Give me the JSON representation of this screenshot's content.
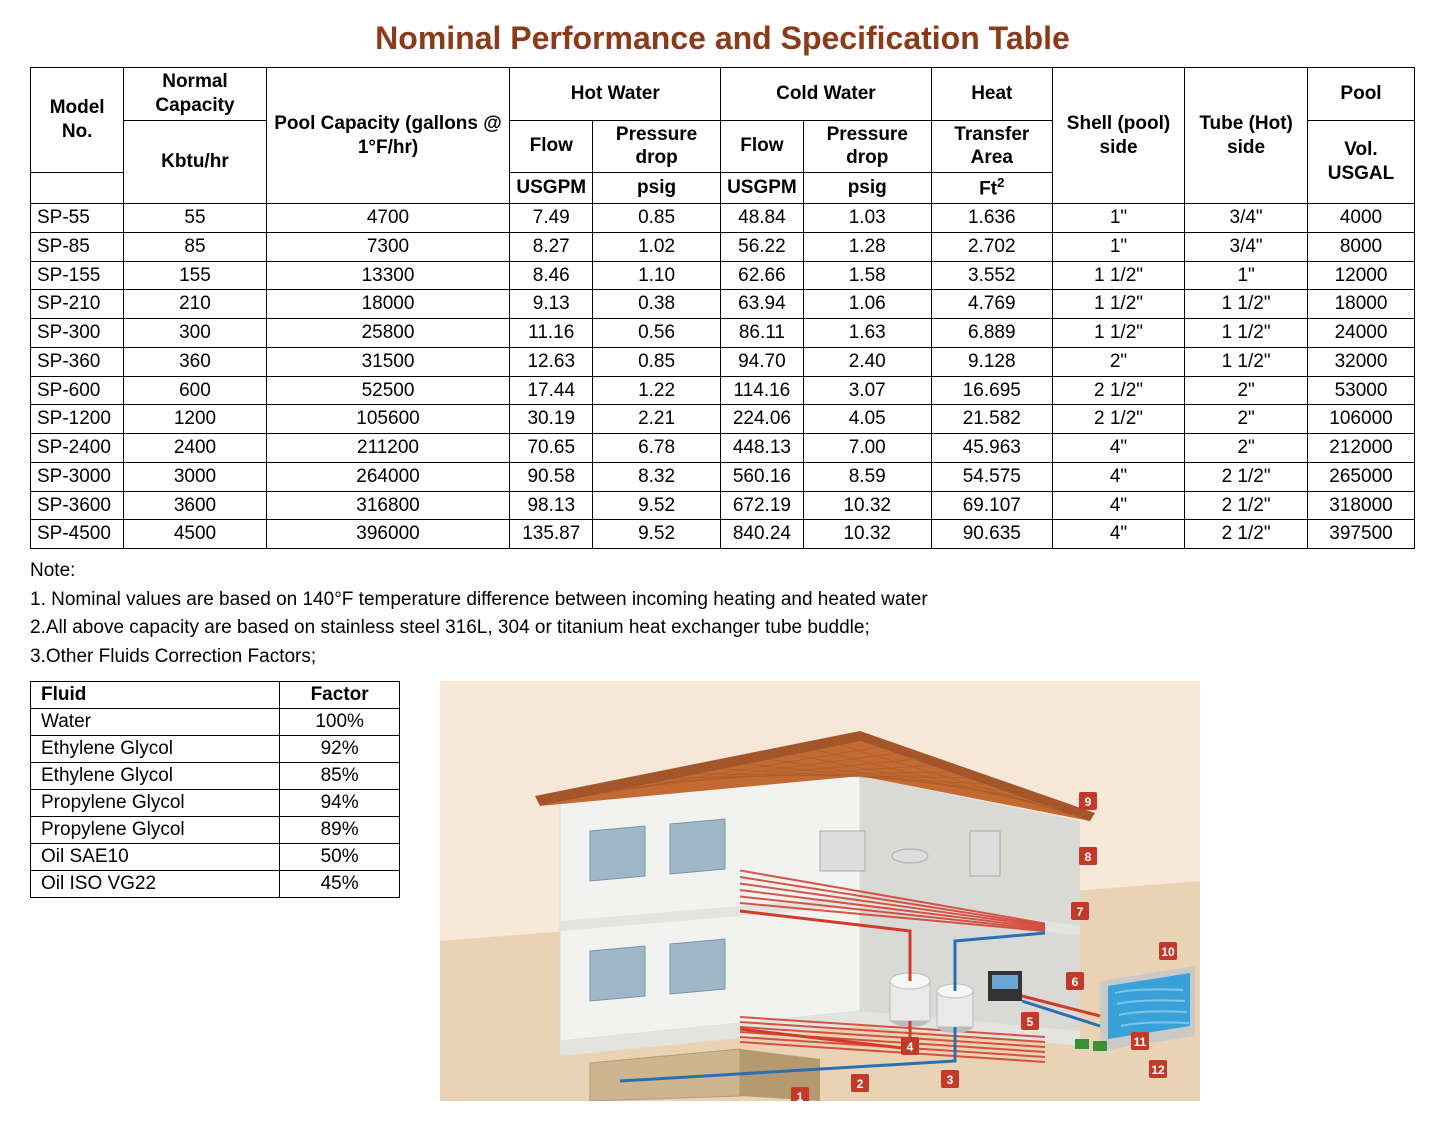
{
  "title": "Nominal Performance and Specification Table",
  "spec_table": {
    "header": {
      "model_no": "Model No.",
      "normal_capacity": "Normal Capacity",
      "normal_capacity_unit": "Kbtu/hr",
      "pool_capacity": "Pool Capacity (gallons @ 1°F/hr)",
      "hot_water": "Hot Water",
      "cold_water": "Cold Water",
      "flow": "Flow",
      "flow_unit": "USGPM",
      "pressure_drop": "Pressure drop",
      "pressure_drop_unit": "psig",
      "heat": "Heat",
      "heat_transfer_area": "Transfer Area",
      "heat_unit": "Ft",
      "heat_unit_sup": "2",
      "shell": "Shell (pool) side",
      "tube": "Tube (Hot) side",
      "pool": "Pool",
      "pool_vol": "Vol. USGAL"
    },
    "rows": [
      {
        "model": "SP-55",
        "cap": "55",
        "pool_cap": "4700",
        "hw_flow": "7.49",
        "hw_pd": "0.85",
        "cw_flow": "48.84",
        "cw_pd": "1.03",
        "hta": "1.636",
        "shell": "1\"",
        "tube": "3/4\"",
        "pvol": "4000"
      },
      {
        "model": "SP-85",
        "cap": "85",
        "pool_cap": "7300",
        "hw_flow": "8.27",
        "hw_pd": "1.02",
        "cw_flow": "56.22",
        "cw_pd": "1.28",
        "hta": "2.702",
        "shell": "1\"",
        "tube": "3/4\"",
        "pvol": "8000"
      },
      {
        "model": "SP-155",
        "cap": "155",
        "pool_cap": "13300",
        "hw_flow": "8.46",
        "hw_pd": "1.10",
        "cw_flow": "62.66",
        "cw_pd": "1.58",
        "hta": "3.552",
        "shell": "1 1/2\"",
        "tube": "1\"",
        "pvol": "12000"
      },
      {
        "model": "SP-210",
        "cap": "210",
        "pool_cap": "18000",
        "hw_flow": "9.13",
        "hw_pd": "0.38",
        "cw_flow": "63.94",
        "cw_pd": "1.06",
        "hta": "4.769",
        "shell": "1 1/2\"",
        "tube": "1 1/2\"",
        "pvol": "18000"
      },
      {
        "model": "SP-300",
        "cap": "300",
        "pool_cap": "25800",
        "hw_flow": "11.16",
        "hw_pd": "0.56",
        "cw_flow": "86.11",
        "cw_pd": "1.63",
        "hta": "6.889",
        "shell": "1 1/2\"",
        "tube": "1 1/2\"",
        "pvol": "24000"
      },
      {
        "model": "SP-360",
        "cap": "360",
        "pool_cap": "31500",
        "hw_flow": "12.63",
        "hw_pd": "0.85",
        "cw_flow": "94.70",
        "cw_pd": "2.40",
        "hta": "9.128",
        "shell": "2\"",
        "tube": "1 1/2\"",
        "pvol": "32000"
      },
      {
        "model": "SP-600",
        "cap": "600",
        "pool_cap": "52500",
        "hw_flow": "17.44",
        "hw_pd": "1.22",
        "cw_flow": "114.16",
        "cw_pd": "3.07",
        "hta": "16.695",
        "shell": "2 1/2\"",
        "tube": "2\"",
        "pvol": "53000"
      },
      {
        "model": "SP-1200",
        "cap": "1200",
        "pool_cap": "105600",
        "hw_flow": "30.19",
        "hw_pd": "2.21",
        "cw_flow": "224.06",
        "cw_pd": "4.05",
        "hta": "21.582",
        "shell": "2 1/2\"",
        "tube": "2\"",
        "pvol": "106000"
      },
      {
        "model": "SP-2400",
        "cap": "2400",
        "pool_cap": "211200",
        "hw_flow": "70.65",
        "hw_pd": "6.78",
        "cw_flow": "448.13",
        "cw_pd": "7.00",
        "hta": "45.963",
        "shell": "4\"",
        "tube": "2\"",
        "pvol": "212000"
      },
      {
        "model": "SP-3000",
        "cap": "3000",
        "pool_cap": "264000",
        "hw_flow": "90.58",
        "hw_pd": "8.32",
        "cw_flow": "560.16",
        "cw_pd": "8.59",
        "hta": "54.575",
        "shell": "4\"",
        "tube": "2 1/2\"",
        "pvol": "265000"
      },
      {
        "model": "SP-3600",
        "cap": "3600",
        "pool_cap": "316800",
        "hw_flow": "98.13",
        "hw_pd": "9.52",
        "cw_flow": "672.19",
        "cw_pd": "10.32",
        "hta": "69.107",
        "shell": "4\"",
        "tube": "2 1/2\"",
        "pvol": "318000"
      },
      {
        "model": "SP-4500",
        "cap": "4500",
        "pool_cap": "396000",
        "hw_flow": "135.87",
        "hw_pd": "9.52",
        "cw_flow": "840.24",
        "cw_pd": "10.32",
        "hta": "90.635",
        "shell": "4\"",
        "tube": "2 1/2\"",
        "pvol": "397500"
      }
    ]
  },
  "notes": {
    "heading": "Note:",
    "items": [
      "1. Nominal values are based on 140°F temperature difference between incoming heating and heated water",
      "2.All above capacity are based on stainless steel 316L, 304 or titanium heat exchanger tube buddle;",
      "3.Other Fluids Correction Factors;"
    ]
  },
  "fluid_table": {
    "header": {
      "fluid": "Fluid",
      "factor": "Factor"
    },
    "rows": [
      {
        "fluid": "Water",
        "factor": "100%"
      },
      {
        "fluid": "Ethylene Glycol",
        "factor": "92%"
      },
      {
        "fluid": "Ethylene Glycol",
        "factor": "85%"
      },
      {
        "fluid": "Propylene Glycol",
        "factor": "94%"
      },
      {
        "fluid": "Propylene Glycol",
        "factor": "89%"
      },
      {
        "fluid": "Oil SAE10",
        "factor": "50%"
      },
      {
        "fluid": "Oil ISO VG22",
        "factor": "45%"
      }
    ]
  },
  "diagram": {
    "type": "infographic",
    "description": "Cutaway isometric illustration of a two-story house showing heat-exchanger piping to radiant floors, appliances, and an outdoor pool.",
    "colors": {
      "sky": "#f6e7d6",
      "ground": "#e9d3b4",
      "roof": "#c26a32",
      "roof_shadow": "#a5552a",
      "wall": "#f2f2f0",
      "wall_shadow": "#d9d9d6",
      "floor": "#e3e3df",
      "pipe_hot": "#d23a2a",
      "pipe_cold": "#2a6fb0",
      "pool": "#3aa0d8",
      "pool_edge": "#c9c9c7",
      "tank": "#e9e9e9",
      "tank_shadow": "#bcbcbc",
      "marker_bg": "#c33a2a",
      "marker_text": "#ffffff",
      "window": "#9fb8c9"
    }
  }
}
